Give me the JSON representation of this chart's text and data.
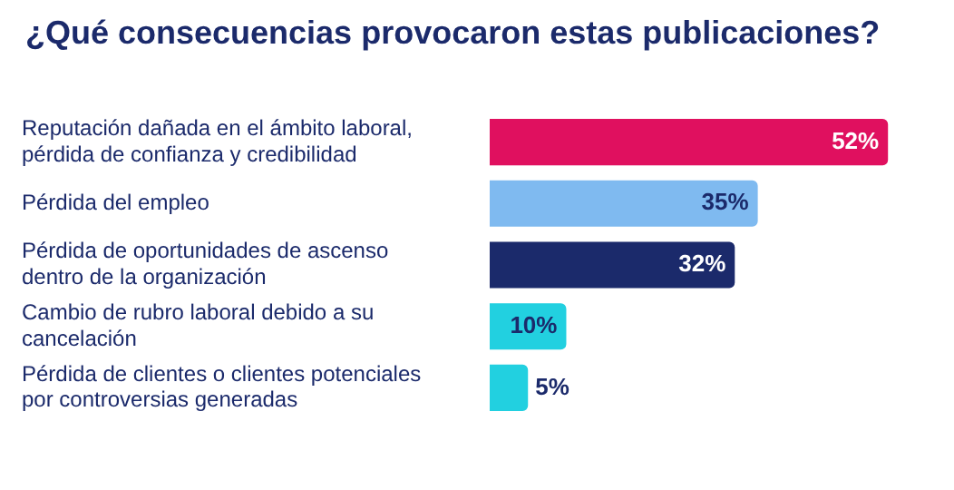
{
  "chart_data": {
    "type": "bar",
    "orientation": "horizontal",
    "title": "¿Qué consecuencias provocaron estas publicaciones?",
    "categories": [
      "Reputación dañada en el ámbito laboral, pérdida de confianza y credibilidad",
      "Pérdida del empleo",
      "Pérdida de oportunidades de ascenso dentro de la organización",
      "Cambio de rubro laboral debido a su cancelación",
      "Pérdida de clientes o clientes potenciales por controversias generadas"
    ],
    "values": [
      52,
      35,
      32,
      10,
      5
    ],
    "colors": [
      "#e0105f",
      "#7fbaf0",
      "#1b2a6b",
      "#22d0e0",
      "#22d0e0"
    ],
    "value_labels": [
      "52%",
      "35%",
      "32%",
      "10%",
      "5%"
    ],
    "legend": false
  }
}
